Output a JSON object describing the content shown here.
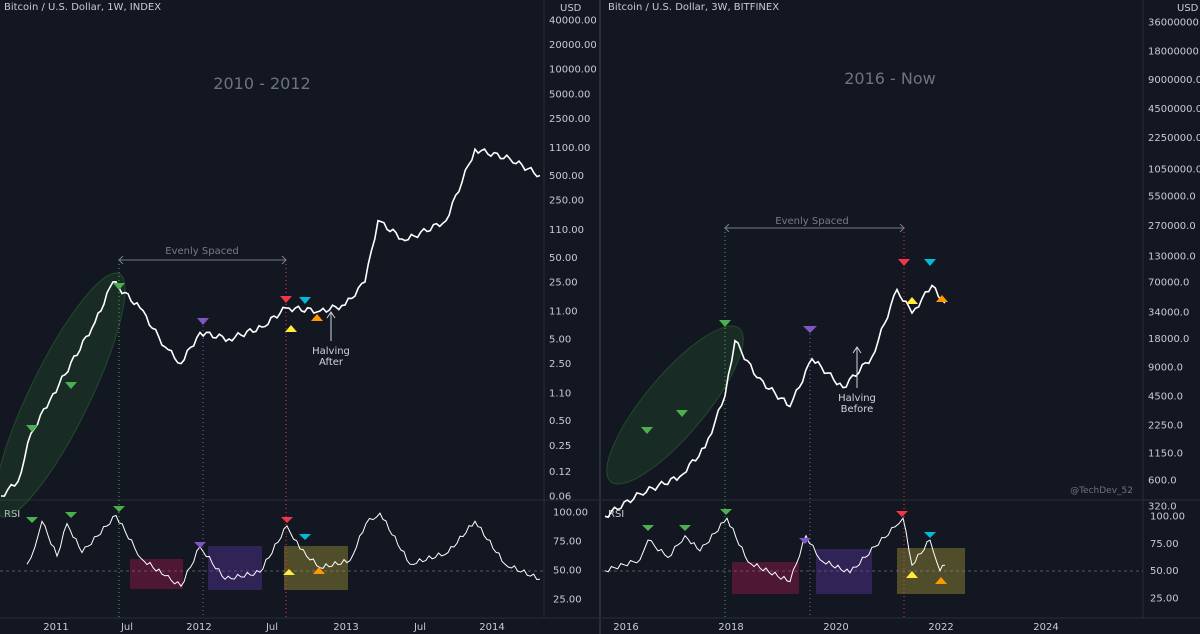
{
  "colors": {
    "background": "#131722",
    "price_line": "#ffffff",
    "cycle_start": "#4caf50",
    "mid_cycle": "#7e57c2",
    "halving_top": "#f23645",
    "second_top": "#00bcd4",
    "yellow": "#ffeb3b",
    "orange": "#ff9800",
    "pink_zone": "#e91e63",
    "purple_zone": "#673ab7",
    "olive_zone": "#c0b23a",
    "green_ellipse": "#2e7d32"
  },
  "left": {
    "header": "Bitcoin / U.S. Dollar, 1W, INDEX",
    "period_label": "2010 - 2012",
    "span_label": "Evenly Spaced",
    "halving_note": [
      "Halving",
      "After"
    ],
    "currency": "USD",
    "rsi_label": "RSI"
  },
  "right": {
    "header": "Bitcoin / U.S. Dollar, 3W, BITFINEX",
    "period_label": "2016 - Now",
    "span_label": "Evenly Spaced",
    "halving_note": [
      "Halving",
      "Before"
    ],
    "currency": "USD",
    "rsi_label": "RSI",
    "credit": "@TechDev_52"
  },
  "chart_data": [
    {
      "type": "line",
      "title": "Bitcoin / U.S. Dollar, 1W, INDEX",
      "annotation": "2010 - 2012",
      "y_scale": "log",
      "y_ticks": [
        "40000.00",
        "20000.00",
        "10000.00",
        "5000.00",
        "2500.00",
        "1100.00",
        "500.00",
        "250.00",
        "110.00",
        "50.00",
        "25.00",
        "11.00",
        "5.00",
        "2.50",
        "1.10",
        "0.50",
        "0.25",
        "0.12",
        "0.06"
      ],
      "x_ticks": [
        "2011",
        "Jul",
        "2012",
        "Jul",
        "2013",
        "Jul",
        "2014"
      ],
      "series": [
        {
          "x": [
            "2010-07",
            "2010-10",
            "2011-01",
            "2011-03",
            "2011-05",
            "2011-06",
            "2011-08",
            "2011-10",
            "2011-11",
            "2012-01",
            "2012-04",
            "2012-07",
            "2012-08",
            "2012-10",
            "2012-12",
            "2013-02",
            "2013-04",
            "2013-07",
            "2013-10",
            "2013-12",
            "2014-02",
            "2014-04"
          ],
          "y": [
            0.06,
            0.09,
            0.35,
            0.9,
            8,
            25,
            12,
            4,
            2.5,
            6,
            5,
            7,
            12,
            11,
            13,
            25,
            140,
            80,
            140,
            1050,
            800,
            500
          ]
        }
      ],
      "markers": [
        {
          "x": "2010-10",
          "shape": "triangle-down",
          "color": "cycle_start"
        },
        {
          "x": "2011-01",
          "shape": "triangle-down",
          "color": "cycle_start"
        },
        {
          "x": "2011-06",
          "shape": "triangle-down",
          "color": "cycle_start"
        },
        {
          "x": "2012-01",
          "shape": "triangle-down",
          "color": "mid_cycle"
        },
        {
          "x": "2012-07",
          "shape": "triangle-down",
          "color": "halving_top"
        },
        {
          "x": "2012-07",
          "shape": "triangle-up",
          "color": "yellow"
        },
        {
          "x": "2012-09",
          "shape": "triangle-down",
          "color": "second_top"
        },
        {
          "x": "2012-10",
          "shape": "triangle-up",
          "color": "orange"
        }
      ],
      "rsi": {
        "y_ticks": [
          "100.00",
          "75.00",
          "50.00",
          "25.00"
        ],
        "x": [
          "2010-07",
          "2010-09",
          "2010-10",
          "2010-12",
          "2011-01",
          "2011-03",
          "2011-06",
          "2011-08",
          "2011-10",
          "2011-11",
          "2012-01",
          "2012-03",
          "2012-06",
          "2012-07",
          "2012-08",
          "2012-10",
          "2012-12",
          "2013-02",
          "2013-04",
          "2013-07",
          "2013-10",
          "2013-12",
          "2014-02",
          "2014-04"
        ],
        "values": [
          55,
          70,
          92,
          62,
          90,
          65,
          97,
          60,
          45,
          36,
          70,
          42,
          48,
          88,
          68,
          52,
          58,
          90,
          99,
          55,
          65,
          92,
          55,
          42
        ]
      }
    },
    {
      "type": "line",
      "title": "Bitcoin / U.S. Dollar, 3W, BITFINEX",
      "annotation": "2016 - Now",
      "y_scale": "log",
      "y_ticks": [
        "36000000.0",
        "18000000.0",
        "9000000.0",
        "4500000.0",
        "2250000.0",
        "1050000.0",
        "550000.0",
        "270000.0",
        "130000.0",
        "70000.0",
        "34000.0",
        "18000.0",
        "9000.0",
        "4500.0",
        "2250.0",
        "1150.0",
        "600.0",
        "320.0"
      ],
      "x_ticks": [
        "2016",
        "2018",
        "2020",
        "2022",
        "2024"
      ],
      "series": [
        {
          "x": [
            "2015-08",
            "2016-03",
            "2016-09",
            "2017-04",
            "2017-09",
            "2017-12",
            "2018-06",
            "2018-12",
            "2019-06",
            "2020-03",
            "2020-10",
            "2021-04",
            "2021-07",
            "2021-11",
            "2022-02"
          ],
          "y": [
            250,
            430,
            650,
            1300,
            4500,
            17000,
            7000,
            3500,
            11000,
            5500,
            11500,
            58000,
            33000,
            64000,
            42000
          ]
        }
      ],
      "markers": [
        {
          "x": "2016-07",
          "shape": "triangle-down",
          "color": "cycle_start"
        },
        {
          "x": "2017-03",
          "shape": "triangle-down",
          "color": "cycle_start"
        },
        {
          "x": "2017-12",
          "shape": "triangle-down",
          "color": "cycle_start"
        },
        {
          "x": "2019-06",
          "shape": "triangle-down",
          "color": "mid_cycle"
        },
        {
          "x": "2021-04",
          "shape": "triangle-down",
          "color": "halving_top"
        },
        {
          "x": "2021-07",
          "shape": "triangle-up",
          "color": "yellow"
        },
        {
          "x": "2021-11",
          "shape": "triangle-down",
          "color": "second_top"
        },
        {
          "x": "2022-01",
          "shape": "triangle-up",
          "color": "orange"
        }
      ],
      "rsi": {
        "y_ticks": [
          "100.00",
          "75.00",
          "50.00",
          "25.00"
        ],
        "x": [
          "2015-08",
          "2016-03",
          "2016-07",
          "2016-10",
          "2017-03",
          "2017-06",
          "2017-12",
          "2018-03",
          "2018-12",
          "2019-06",
          "2019-09",
          "2020-03",
          "2020-10",
          "2021-02",
          "2021-04",
          "2021-07",
          "2021-11",
          "2022-01",
          "2022-02"
        ],
        "values": [
          50,
          60,
          78,
          62,
          82,
          68,
          98,
          58,
          40,
          82,
          60,
          48,
          72,
          90,
          98,
          55,
          78,
          50,
          55
        ]
      }
    }
  ]
}
